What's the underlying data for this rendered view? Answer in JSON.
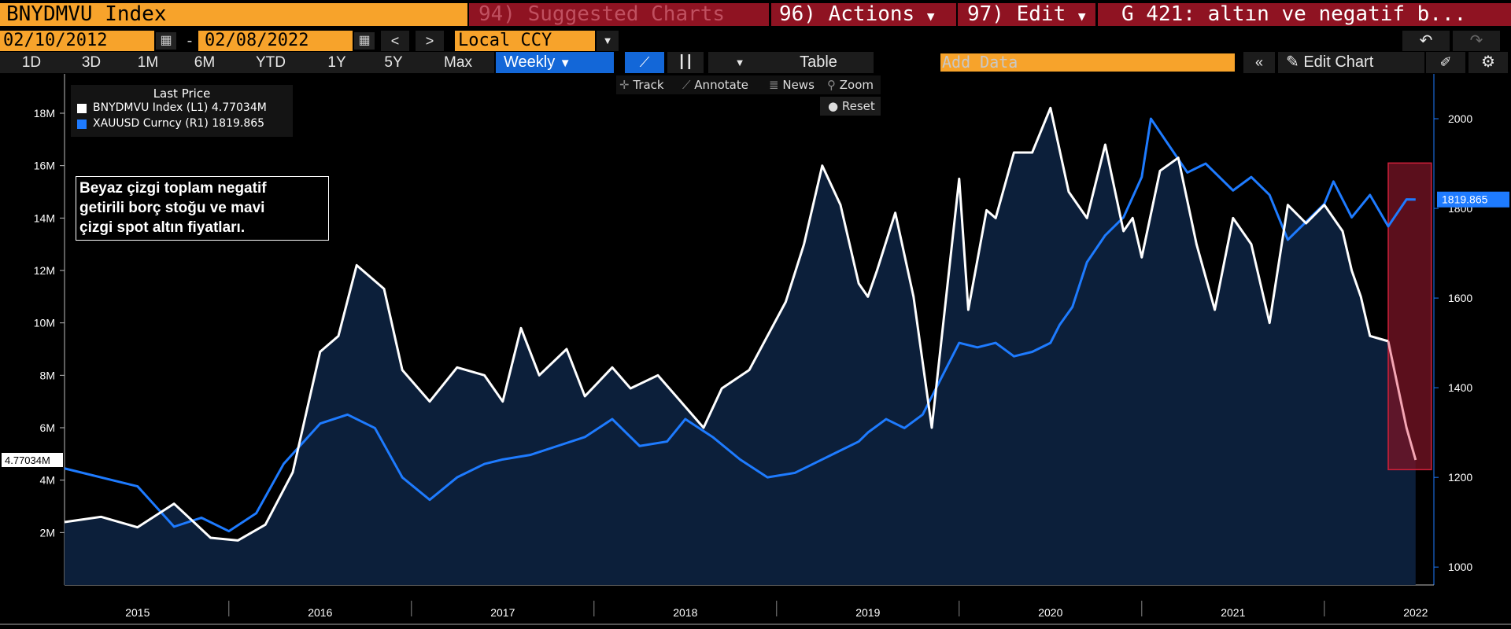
{
  "header": {
    "ticker": "BNYDMVU Index",
    "suggested": "94) Suggested Charts",
    "actions": "96) Actions",
    "edit": "97) Edit",
    "chart_title": "G 421: altın ve negatif b..."
  },
  "daterange": {
    "start": "02/10/2012",
    "end": "02/08/2022",
    "currency": "Local CCY"
  },
  "periods": [
    "1D",
    "3D",
    "1M",
    "6M",
    "YTD",
    "1Y",
    "5Y",
    "Max"
  ],
  "frequency": "Weekly",
  "toolbar": {
    "table": "Table",
    "add_data_placeholder": "Add Data",
    "edit_chart": "Edit Chart"
  },
  "tools": {
    "track": "Track",
    "annotate": "Annotate",
    "news": "News",
    "zoom": "Zoom",
    "reset": "Reset"
  },
  "legend": {
    "title": "Last Price",
    "items": [
      {
        "label": "BNYDMVU Index  (L1) 4.77034M",
        "color": "#ffffff"
      },
      {
        "label": "XAUUSD Curncy  (R1) 1819.865",
        "color": "#1e7bff"
      }
    ]
  },
  "annotation": {
    "lines": [
      "Beyaz çizgi toplam negatif",
      "getirili borç stoğu ve mavi",
      "çizgi spot altın fiyatları."
    ]
  },
  "last_labels": {
    "left": "4.77034M",
    "right": "1819.865"
  },
  "colors": {
    "white_series": "#ffffff",
    "blue_series": "#1e7bff",
    "area": "#0c1f3a",
    "highlight": "#7a1426",
    "highlight_border": "#d0203a"
  },
  "chart_data": {
    "type": "line",
    "x_tick_labels": [
      "2015",
      "2016",
      "2017",
      "2018",
      "2019",
      "2020",
      "2021",
      "2022"
    ],
    "y_left": {
      "ticks": [
        "2M",
        "4M",
        "6M",
        "8M",
        "10M",
        "12M",
        "14M",
        "16M",
        "18M"
      ],
      "range": [
        0,
        19.5
      ],
      "unit": "M"
    },
    "y_right": {
      "ticks": [
        "1000",
        "1200",
        "1400",
        "1600",
        "1800",
        "2000"
      ],
      "range": [
        960,
        2100
      ]
    },
    "series": [
      {
        "name": "BNYDMVU Index",
        "axis": "left",
        "x": [
          2014.6,
          2014.8,
          2015.0,
          2015.2,
          2015.4,
          2015.55,
          2015.7,
          2015.85,
          2016.0,
          2016.1,
          2016.2,
          2016.35,
          2016.45,
          2016.6,
          2016.75,
          2016.9,
          2017.0,
          2017.1,
          2017.2,
          2017.35,
          2017.45,
          2017.6,
          2017.7,
          2017.85,
          2018.0,
          2018.1,
          2018.2,
          2018.35,
          2018.45,
          2018.55,
          2018.65,
          2018.75,
          2018.85,
          2018.95,
          2019.0,
          2019.05,
          2019.15,
          2019.25,
          2019.35,
          2019.5,
          2019.55,
          2019.65,
          2019.7,
          2019.8,
          2019.9,
          2020.0,
          2020.1,
          2020.2,
          2020.3,
          2020.4,
          2020.45,
          2020.5,
          2020.6,
          2020.7,
          2020.8,
          2020.9,
          2021.0,
          2021.1,
          2021.2,
          2021.3,
          2021.4,
          2021.5,
          2021.6,
          2021.65,
          2021.7,
          2021.75,
          2021.85,
          2021.95,
          2022.0
        ],
        "y": [
          2.4,
          2.6,
          2.2,
          3.1,
          1.8,
          1.7,
          2.3,
          4.3,
          8.9,
          9.5,
          12.2,
          11.3,
          8.2,
          7.0,
          8.3,
          8.0,
          7.0,
          9.8,
          8.0,
          9.0,
          7.2,
          8.3,
          7.5,
          8.0,
          6.8,
          6.0,
          7.5,
          8.2,
          9.5,
          10.8,
          13.0,
          16.0,
          14.5,
          11.5,
          11.0,
          12.0,
          14.2,
          11.0,
          6.0,
          15.5,
          10.5,
          14.3,
          14.0,
          16.5,
          16.5,
          18.2,
          15.0,
          14.0,
          16.8,
          13.5,
          14.0,
          12.5,
          15.8,
          16.3,
          13.0,
          10.5,
          14.0,
          13.0,
          10.0,
          14.5,
          13.8,
          14.5,
          13.5,
          12.0,
          11.0,
          9.5,
          9.3,
          6.0,
          4.77
        ]
      },
      {
        "name": "XAUUSD Curncy",
        "axis": "right",
        "x": [
          2014.6,
          2014.8,
          2015.0,
          2015.2,
          2015.35,
          2015.5,
          2015.65,
          2015.8,
          2016.0,
          2016.15,
          2016.3,
          2016.45,
          2016.6,
          2016.75,
          2016.9,
          2017.0,
          2017.15,
          2017.3,
          2017.45,
          2017.6,
          2017.75,
          2017.9,
          2018.0,
          2018.15,
          2018.3,
          2018.45,
          2018.6,
          2018.7,
          2018.8,
          2018.95,
          2019.0,
          2019.1,
          2019.2,
          2019.3,
          2019.4,
          2019.5,
          2019.6,
          2019.7,
          2019.8,
          2019.9,
          2020.0,
          2020.05,
          2020.12,
          2020.2,
          2020.3,
          2020.4,
          2020.5,
          2020.55,
          2020.65,
          2020.75,
          2020.85,
          2021.0,
          2021.1,
          2021.2,
          2021.3,
          2021.4,
          2021.5,
          2021.55,
          2021.65,
          2021.75,
          2021.85,
          2021.95,
          2022.0
        ],
        "y": [
          1220,
          1200,
          1180,
          1090,
          1110,
          1080,
          1120,
          1230,
          1320,
          1340,
          1310,
          1200,
          1150,
          1200,
          1230,
          1240,
          1250,
          1270,
          1290,
          1330,
          1270,
          1280,
          1330,
          1290,
          1240,
          1200,
          1210,
          1230,
          1250,
          1280,
          1300,
          1330,
          1310,
          1340,
          1420,
          1500,
          1490,
          1500,
          1470,
          1480,
          1500,
          1540,
          1580,
          1680,
          1740,
          1780,
          1870,
          2000,
          1940,
          1880,
          1900,
          1840,
          1870,
          1830,
          1730,
          1770,
          1810,
          1860,
          1780,
          1830,
          1760,
          1820,
          1819.865
        ]
      }
    ],
    "highlight_range": [
      2021.85,
      2022.0
    ]
  }
}
